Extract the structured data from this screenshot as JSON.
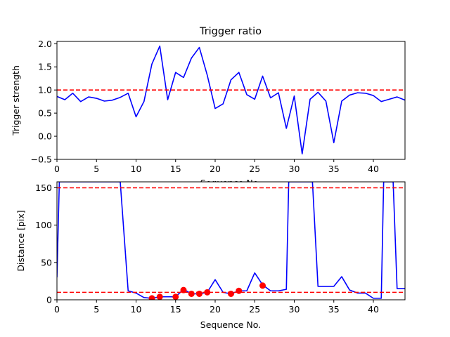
{
  "colors": {
    "series": "#0000ff",
    "threshold": "#ff0000",
    "markers": "#ff0000",
    "axes": "#000000",
    "background": "#ffffff"
  },
  "chart_data": [
    {
      "type": "line",
      "title": "Trigger ratio",
      "xlabel": "Sequence No.",
      "ylabel": "Trigger strength",
      "xlim": [
        0,
        44
      ],
      "ylim": [
        -0.5,
        2.05
      ],
      "xticks": [
        0,
        5,
        10,
        15,
        20,
        25,
        30,
        35,
        40
      ],
      "yticks": [
        -0.5,
        0.0,
        0.5,
        1.0,
        1.5,
        2.0
      ],
      "ytick_labels": [
        "−0.5",
        "0.0",
        "0.5",
        "1.0",
        "1.5",
        "2.0"
      ],
      "grid": false,
      "series": [
        {
          "style": "solid",
          "color": "#0000ff",
          "x": [
            0,
            1,
            2,
            3,
            4,
            5,
            6,
            7,
            8,
            9,
            10,
            11,
            12,
            13,
            14,
            15,
            16,
            17,
            18,
            19,
            20,
            21,
            22,
            23,
            24,
            25,
            26,
            27,
            28,
            29,
            30,
            31,
            32,
            33,
            34,
            35,
            36,
            37,
            38,
            39,
            40,
            41,
            42,
            43,
            44
          ],
          "y": [
            0.86,
            0.79,
            0.93,
            0.75,
            0.85,
            0.82,
            0.76,
            0.78,
            0.84,
            0.93,
            0.42,
            0.75,
            1.56,
            1.95,
            0.79,
            1.38,
            1.27,
            1.69,
            1.92,
            1.32,
            0.6,
            0.7,
            1.22,
            1.38,
            0.9,
            0.8,
            1.3,
            0.83,
            0.94,
            0.17,
            0.87,
            -0.38,
            0.8,
            0.95,
            0.76,
            -0.14,
            0.76,
            0.89,
            0.94,
            0.93,
            0.88,
            0.75,
            0.8,
            0.85,
            0.78
          ]
        }
      ],
      "hlines": [
        {
          "y": 1.0,
          "style": "dashed",
          "color": "#ff0000"
        }
      ]
    },
    {
      "type": "line",
      "title": "",
      "xlabel": "Sequence No.",
      "ylabel": "Distance [pix]",
      "xlim": [
        0,
        44
      ],
      "ylim": [
        0,
        158
      ],
      "xticks": [
        0,
        5,
        10,
        15,
        20,
        25,
        30,
        35,
        40
      ],
      "yticks": [
        0,
        50,
        100,
        150
      ],
      "grid": false,
      "series": [
        {
          "style": "solid",
          "color": "#0000ff",
          "x": [
            0,
            0.3,
            8,
            9,
            10,
            11,
            12,
            13,
            14,
            15,
            16,
            17,
            18,
            19,
            20,
            21,
            22,
            23,
            24,
            25,
            26,
            27,
            28,
            29,
            29.3,
            32.3,
            33,
            34,
            35,
            36,
            37,
            38,
            39,
            40,
            41,
            41.3,
            42.5,
            43,
            44
          ],
          "y": [
            30,
            158,
            158,
            12,
            9,
            3,
            2,
            4,
            4,
            4,
            14,
            8,
            8,
            10,
            27,
            10,
            8,
            12,
            12,
            36,
            20,
            12,
            12,
            14,
            158,
            158,
            18,
            18,
            18,
            31,
            13,
            9,
            9,
            2,
            2,
            158,
            158,
            15,
            15
          ]
        },
        {
          "style": "markers",
          "color": "#ff0000",
          "x": [
            12,
            13,
            15,
            16,
            17,
            18,
            19,
            22,
            23,
            26
          ],
          "y": [
            2,
            4,
            4,
            13,
            8,
            8,
            10,
            8,
            12,
            19
          ]
        }
      ],
      "hlines": [
        {
          "y": 150,
          "style": "dashed",
          "color": "#ff0000"
        },
        {
          "y": 10,
          "style": "dashed",
          "color": "#ff0000"
        }
      ]
    }
  ]
}
